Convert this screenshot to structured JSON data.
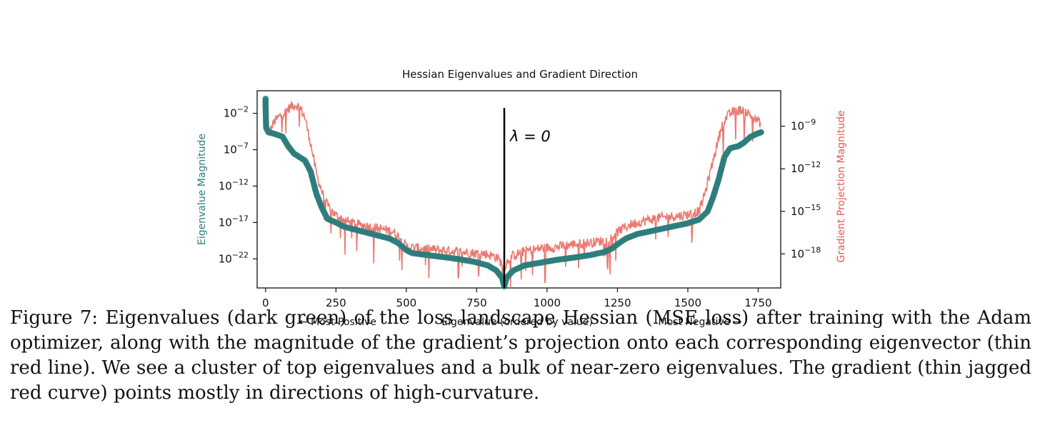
{
  "chart_data": {
    "type": "scatter",
    "title": "Hessian Eigenvalues and Gradient Direction",
    "xlabel": "Eigenvalue (ordered by value)",
    "xlabel_left": "← Most Positive",
    "xlabel_right": "Most Negative →",
    "ylabel_left": "Eigenvalue Magnitude",
    "ylabel_right": "Gradient Projection Magnitude",
    "xlim": [
      -30,
      1830
    ],
    "x_ticks": [
      "0",
      "250",
      "500",
      "750",
      "1000",
      "1250",
      "1500",
      "1750"
    ],
    "y_left": {
      "scale": "log",
      "range_exp": [
        -26.0,
        1.1
      ],
      "ticks": [
        {
          "exp": -2,
          "label": "10",
          "sup": "−2"
        },
        {
          "exp": -7,
          "label": "10",
          "sup": "−7"
        },
        {
          "exp": -12,
          "label": "10",
          "sup": "−12"
        },
        {
          "exp": -17,
          "label": "10",
          "sup": "−17"
        },
        {
          "exp": -22,
          "label": "10",
          "sup": "−22"
        }
      ]
    },
    "y_right": {
      "scale": "log",
      "range_exp": [
        -20.4,
        -6.5
      ],
      "ticks": [
        {
          "exp": -9,
          "label": "10",
          "sup": "−9"
        },
        {
          "exp": -12,
          "label": "10",
          "sup": "−12"
        },
        {
          "exp": -15,
          "label": "10",
          "sup": "−15"
        },
        {
          "exp": -18,
          "label": "10",
          "sup": "−18"
        }
      ]
    },
    "zero_line": {
      "x": 848,
      "label": "λ = 0"
    },
    "series": [
      {
        "color": "#2e7d7d",
        "axis": "left",
        "style": "markers",
        "points": [
          [
            0,
            0.0
          ],
          [
            0,
            -1.0
          ],
          [
            1,
            -2.5
          ],
          [
            2,
            -4.0
          ],
          [
            10,
            -4.6
          ],
          [
            30,
            -4.8
          ],
          [
            60,
            -5.2
          ],
          [
            80,
            -6.5
          ],
          [
            100,
            -7.5
          ],
          [
            120,
            -8.0
          ],
          [
            140,
            -8.5
          ],
          [
            160,
            -10.0
          ],
          [
            180,
            -13.0
          ],
          [
            200,
            -15.0
          ],
          [
            220,
            -16.5
          ],
          [
            250,
            -17.0
          ],
          [
            280,
            -17.6
          ],
          [
            320,
            -18.0
          ],
          [
            360,
            -18.4
          ],
          [
            400,
            -18.8
          ],
          [
            440,
            -19.2
          ],
          [
            470,
            -19.8
          ],
          [
            500,
            -20.8
          ],
          [
            520,
            -21.2
          ],
          [
            560,
            -21.4
          ],
          [
            620,
            -21.7
          ],
          [
            680,
            -22.0
          ],
          [
            740,
            -22.4
          ],
          [
            790,
            -22.9
          ],
          [
            820,
            -23.6
          ],
          [
            840,
            -24.6
          ],
          [
            848,
            -25.8
          ],
          [
            856,
            -24.6
          ],
          [
            880,
            -23.6
          ],
          [
            920,
            -22.9
          ],
          [
            980,
            -22.5
          ],
          [
            1040,
            -22.1
          ],
          [
            1100,
            -21.8
          ],
          [
            1150,
            -21.5
          ],
          [
            1200,
            -21.1
          ],
          [
            1230,
            -20.6
          ],
          [
            1250,
            -20.0
          ],
          [
            1280,
            -19.2
          ],
          [
            1320,
            -18.6
          ],
          [
            1380,
            -18.1
          ],
          [
            1440,
            -17.6
          ],
          [
            1500,
            -17.1
          ],
          [
            1540,
            -16.6
          ],
          [
            1570,
            -15.5
          ],
          [
            1590,
            -13.5
          ],
          [
            1610,
            -11.0
          ],
          [
            1630,
            -8.0
          ],
          [
            1650,
            -6.8
          ],
          [
            1680,
            -6.5
          ],
          [
            1700,
            -6.0
          ],
          [
            1720,
            -5.3
          ],
          [
            1740,
            -4.9
          ],
          [
            1760,
            -4.6
          ]
        ]
      },
      {
        "color": "#e86a62",
        "axis": "right",
        "style": "line",
        "points": [
          [
            0,
            -9.0
          ],
          [
            15,
            -9.4
          ],
          [
            30,
            -8.7
          ],
          [
            50,
            -8.3
          ],
          [
            70,
            -8.0
          ],
          [
            90,
            -7.6
          ],
          [
            110,
            -7.5
          ],
          [
            125,
            -7.8
          ],
          [
            140,
            -8.4
          ],
          [
            160,
            -10.2
          ],
          [
            180,
            -12.3
          ],
          [
            200,
            -13.6
          ],
          [
            220,
            -14.6
          ],
          [
            250,
            -15.3
          ],
          [
            300,
            -15.8
          ],
          [
            350,
            -16.0
          ],
          [
            400,
            -16.2
          ],
          [
            450,
            -16.4
          ],
          [
            480,
            -16.9
          ],
          [
            500,
            -17.5
          ],
          [
            540,
            -17.6
          ],
          [
            600,
            -17.7
          ],
          [
            660,
            -17.8
          ],
          [
            720,
            -17.9
          ],
          [
            780,
            -18.0
          ],
          [
            820,
            -18.2
          ],
          [
            848,
            -18.9
          ],
          [
            870,
            -18.2
          ],
          [
            920,
            -17.8
          ],
          [
            980,
            -17.6
          ],
          [
            1040,
            -17.5
          ],
          [
            1100,
            -17.3
          ],
          [
            1160,
            -17.2
          ],
          [
            1220,
            -17.0
          ],
          [
            1260,
            -16.3
          ],
          [
            1300,
            -15.9
          ],
          [
            1360,
            -15.6
          ],
          [
            1420,
            -15.4
          ],
          [
            1480,
            -15.3
          ],
          [
            1540,
            -15.0
          ],
          [
            1560,
            -13.8
          ],
          [
            1580,
            -12.2
          ],
          [
            1600,
            -10.6
          ],
          [
            1620,
            -9.0
          ],
          [
            1640,
            -8.3
          ],
          [
            1660,
            -8.0
          ],
          [
            1680,
            -7.9
          ],
          [
            1700,
            -7.8
          ],
          [
            1720,
            -8.2
          ],
          [
            1740,
            -8.5
          ],
          [
            1760,
            -8.8
          ]
        ]
      }
    ]
  },
  "caption": "Figure 7: Eigenvalues (dark green) of the loss landscape Hessian (MSE loss) after training with the Adam optimizer, along with the magnitude of the gradient’s projection onto each corresponding eigenvector (thin red line). We see a cluster of top eigenvalues and a bulk of near-zero eigenvalues. The gradient (thin jagged red curve) points mostly in directions of high-curvature."
}
